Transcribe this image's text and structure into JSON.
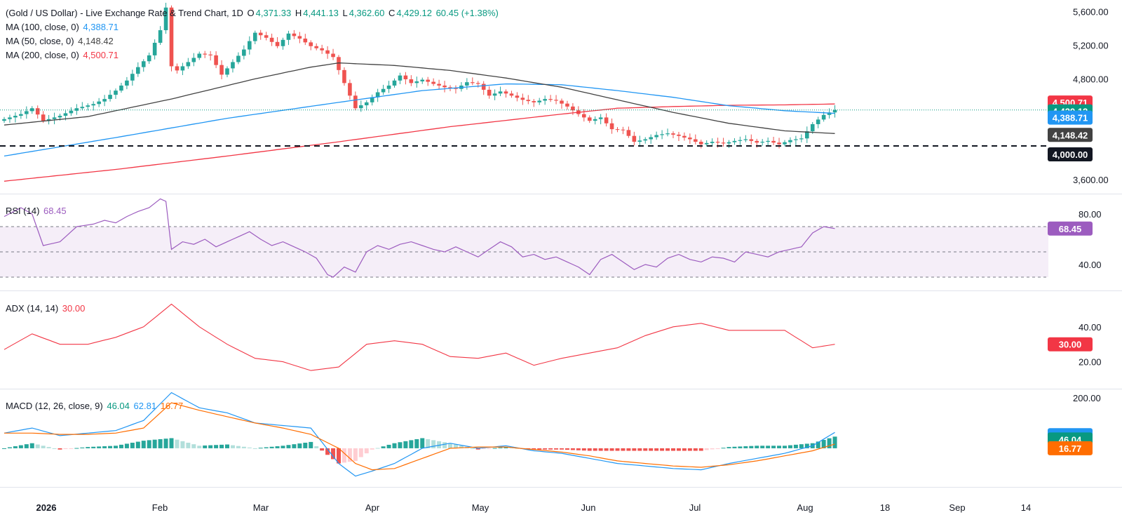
{
  "colors": {
    "up": "#26a69a",
    "down": "#ef5350",
    "ma100": "#2196f3",
    "ma50": "#424242",
    "ma200": "#f23645",
    "rsi": "#9c5cbf",
    "adx": "#f23645",
    "macd": "#2196f3",
    "signal": "#ff6d00",
    "price_tag": "#089981",
    "level_tag": "#131722"
  },
  "header": {
    "title": "(Gold / US Dollar) - Live Exchange Rate & Trend Chart, 1D",
    "o_label": "O",
    "o_value": "4,371.33",
    "h_label": "H",
    "h_value": "4,441.13",
    "l_label": "L",
    "l_value": "4,362.60",
    "c_label": "C",
    "c_value": "4,429.12",
    "change": "60.45 (+1.38%)"
  },
  "indicators": {
    "ma100": {
      "label": "MA (100, close, 0)",
      "value": "4,388.71"
    },
    "ma50": {
      "label": "MA (50, close, 0)",
      "value": "4,148.42"
    },
    "ma200": {
      "label": "MA (200, close, 0)",
      "value": "4,500.71"
    },
    "rsi": {
      "label": "RSI (14)",
      "value": "68.45"
    },
    "adx": {
      "label": "ADX (14, 14)",
      "value": "30.00"
    },
    "macd": {
      "label": "MACD (12, 26, close, 9)",
      "hist": "46.04",
      "macd": "62.81",
      "signal": "16.77"
    }
  },
  "chart_data": [
    {
      "type": "line",
      "panel": "price",
      "y_ticks": [
        "5,600.00",
        "5,200.00",
        "4,800.00",
        "3,600.00"
      ],
      "ylim": [
        3440,
        5740
      ],
      "x_labels": [
        "2026",
        "Feb",
        "Mar",
        "Apr",
        "May",
        "Jun",
        "Jul",
        "Aug",
        "18",
        "Sep",
        "14"
      ],
      "horizontal_level": 4000,
      "price_path": [
        [
          0,
          4320
        ],
        [
          3,
          4380
        ],
        [
          5,
          4450
        ],
        [
          7,
          4300
        ],
        [
          10,
          4360
        ],
        [
          13,
          4450
        ],
        [
          16,
          4500
        ],
        [
          18,
          4560
        ],
        [
          20,
          4660
        ],
        [
          22,
          4780
        ],
        [
          24,
          4940
        ],
        [
          26,
          5080
        ],
        [
          28,
          5380
        ],
        [
          29,
          5650
        ],
        [
          30,
          4950
        ],
        [
          31,
          4900
        ],
        [
          33,
          5000
        ],
        [
          35,
          5100
        ],
        [
          37,
          5080
        ],
        [
          39,
          4850
        ],
        [
          41,
          5000
        ],
        [
          43,
          5150
        ],
        [
          45,
          5350
        ],
        [
          47,
          5290
        ],
        [
          49,
          5190
        ],
        [
          51,
          5340
        ],
        [
          53,
          5280
        ],
        [
          55,
          5190
        ],
        [
          57,
          5140
        ],
        [
          59,
          5060
        ],
        [
          61,
          4750
        ],
        [
          63,
          4450
        ],
        [
          65,
          4520
        ],
        [
          67,
          4640
        ],
        [
          69,
          4720
        ],
        [
          71,
          4840
        ],
        [
          73,
          4750
        ],
        [
          75,
          4790
        ],
        [
          77,
          4740
        ],
        [
          79,
          4700
        ],
        [
          81,
          4680
        ],
        [
          83,
          4760
        ],
        [
          85,
          4740
        ],
        [
          87,
          4600
        ],
        [
          89,
          4650
        ],
        [
          91,
          4600
        ],
        [
          93,
          4550
        ],
        [
          95,
          4520
        ],
        [
          97,
          4560
        ],
        [
          99,
          4540
        ],
        [
          101,
          4470
        ],
        [
          103,
          4380
        ],
        [
          105,
          4300
        ],
        [
          107,
          4340
        ],
        [
          109,
          4200
        ],
        [
          111,
          4190
        ],
        [
          113,
          4050
        ],
        [
          115,
          4080
        ],
        [
          117,
          4130
        ],
        [
          119,
          4150
        ],
        [
          121,
          4120
        ],
        [
          123,
          4080
        ],
        [
          125,
          4020
        ],
        [
          127,
          4050
        ],
        [
          129,
          4030
        ],
        [
          131,
          4060
        ],
        [
          133,
          4080
        ],
        [
          135,
          4040
        ],
        [
          137,
          4060
        ],
        [
          139,
          4020
        ],
        [
          141,
          4070
        ],
        [
          143,
          4090
        ],
        [
          145,
          4260
        ],
        [
          147,
          4370
        ],
        [
          149,
          4429.12
        ]
      ],
      "ma100_path": [
        [
          0,
          3880
        ],
        [
          20,
          4100
        ],
        [
          40,
          4330
        ],
        [
          60,
          4520
        ],
        [
          75,
          4660
        ],
        [
          90,
          4740
        ],
        [
          100,
          4730
        ],
        [
          110,
          4660
        ],
        [
          120,
          4580
        ],
        [
          130,
          4480
        ],
        [
          140,
          4420
        ],
        [
          149,
          4388.71
        ]
      ],
      "ma200_path": [
        [
          0,
          3580
        ],
        [
          20,
          3720
        ],
        [
          40,
          3880
        ],
        [
          60,
          4050
        ],
        [
          80,
          4230
        ],
        [
          100,
          4380
        ],
        [
          110,
          4450
        ],
        [
          120,
          4470
        ],
        [
          130,
          4485
        ],
        [
          140,
          4490
        ],
        [
          149,
          4500.71
        ]
      ],
      "ma50_path": [
        [
          0,
          4250
        ],
        [
          15,
          4350
        ],
        [
          30,
          4560
        ],
        [
          45,
          4800
        ],
        [
          55,
          4940
        ],
        [
          60,
          4990
        ],
        [
          70,
          4960
        ],
        [
          80,
          4900
        ],
        [
          90,
          4810
        ],
        [
          100,
          4700
        ],
        [
          110,
          4550
        ],
        [
          120,
          4400
        ],
        [
          130,
          4270
        ],
        [
          140,
          4180
        ],
        [
          149,
          4148.42
        ]
      ],
      "last_values": {
        "close": 4429.12,
        "ma100": 4388.71,
        "ma50": 4148.42,
        "ma200": 4500.71,
        "level": 4000
      }
    },
    {
      "type": "line",
      "panel": "rsi",
      "y_ticks": [
        "80.00",
        "40.00"
      ],
      "ylim": [
        20,
        95
      ],
      "bands": [
        70,
        50,
        30
      ],
      "values": [
        [
          0,
          78
        ],
        [
          3,
          85
        ],
        [
          5,
          80
        ],
        [
          7,
          55
        ],
        [
          10,
          58
        ],
        [
          13,
          70
        ],
        [
          16,
          72
        ],
        [
          18,
          75
        ],
        [
          20,
          73
        ],
        [
          22,
          78
        ],
        [
          24,
          82
        ],
        [
          26,
          85
        ],
        [
          28,
          92
        ],
        [
          29,
          90
        ],
        [
          30,
          52
        ],
        [
          32,
          58
        ],
        [
          34,
          56
        ],
        [
          36,
          60
        ],
        [
          38,
          54
        ],
        [
          40,
          58
        ],
        [
          42,
          62
        ],
        [
          44,
          66
        ],
        [
          46,
          60
        ],
        [
          48,
          55
        ],
        [
          50,
          58
        ],
        [
          52,
          54
        ],
        [
          54,
          50
        ],
        [
          56,
          45
        ],
        [
          58,
          32
        ],
        [
          59,
          30
        ],
        [
          61,
          38
        ],
        [
          63,
          34
        ],
        [
          65,
          50
        ],
        [
          67,
          55
        ],
        [
          69,
          52
        ],
        [
          71,
          56
        ],
        [
          73,
          58
        ],
        [
          75,
          55
        ],
        [
          77,
          52
        ],
        [
          79,
          50
        ],
        [
          81,
          54
        ],
        [
          83,
          50
        ],
        [
          85,
          46
        ],
        [
          87,
          52
        ],
        [
          89,
          58
        ],
        [
          91,
          54
        ],
        [
          93,
          46
        ],
        [
          95,
          48
        ],
        [
          97,
          44
        ],
        [
          99,
          46
        ],
        [
          101,
          42
        ],
        [
          103,
          38
        ],
        [
          105,
          32
        ],
        [
          107,
          44
        ],
        [
          109,
          48
        ],
        [
          111,
          42
        ],
        [
          113,
          36
        ],
        [
          115,
          40
        ],
        [
          117,
          38
        ],
        [
          119,
          45
        ],
        [
          121,
          48
        ],
        [
          123,
          44
        ],
        [
          125,
          42
        ],
        [
          127,
          46
        ],
        [
          129,
          45
        ],
        [
          131,
          42
        ],
        [
          133,
          50
        ],
        [
          135,
          48
        ],
        [
          137,
          46
        ],
        [
          139,
          50
        ],
        [
          141,
          52
        ],
        [
          143,
          54
        ],
        [
          145,
          65
        ],
        [
          147,
          70
        ],
        [
          149,
          68.45
        ]
      ]
    },
    {
      "type": "line",
      "panel": "adx",
      "y_ticks": [
        "40.00",
        "20.00"
      ],
      "ylim": [
        5,
        60
      ],
      "values": [
        [
          0,
          27
        ],
        [
          5,
          36
        ],
        [
          10,
          30
        ],
        [
          15,
          30
        ],
        [
          20,
          34
        ],
        [
          25,
          40
        ],
        [
          30,
          53
        ],
        [
          35,
          40
        ],
        [
          40,
          30
        ],
        [
          45,
          22
        ],
        [
          50,
          20
        ],
        [
          55,
          15
        ],
        [
          60,
          17
        ],
        [
          65,
          30
        ],
        [
          70,
          32
        ],
        [
          75,
          30
        ],
        [
          80,
          23
        ],
        [
          85,
          22
        ],
        [
          90,
          25
        ],
        [
          95,
          18
        ],
        [
          100,
          22
        ],
        [
          105,
          25
        ],
        [
          110,
          28
        ],
        [
          115,
          35
        ],
        [
          120,
          40
        ],
        [
          125,
          42
        ],
        [
          130,
          38
        ],
        [
          135,
          38
        ],
        [
          140,
          38
        ],
        [
          145,
          28
        ],
        [
          149,
          30
        ]
      ]
    },
    {
      "type": "bar",
      "panel": "macd",
      "y_ticks": [
        "200.00"
      ],
      "ylim": [
        -150,
        230
      ],
      "macd_line": [
        [
          0,
          60
        ],
        [
          5,
          80
        ],
        [
          10,
          50
        ],
        [
          15,
          60
        ],
        [
          20,
          70
        ],
        [
          25,
          110
        ],
        [
          30,
          220
        ],
        [
          35,
          160
        ],
        [
          40,
          140
        ],
        [
          45,
          100
        ],
        [
          50,
          90
        ],
        [
          55,
          80
        ],
        [
          60,
          -60
        ],
        [
          63,
          -110
        ],
        [
          66,
          -90
        ],
        [
          70,
          -60
        ],
        [
          75,
          0
        ],
        [
          80,
          20
        ],
        [
          85,
          0
        ],
        [
          90,
          10
        ],
        [
          95,
          -10
        ],
        [
          100,
          -20
        ],
        [
          105,
          -40
        ],
        [
          110,
          -60
        ],
        [
          115,
          -70
        ],
        [
          120,
          -80
        ],
        [
          125,
          -85
        ],
        [
          130,
          -60
        ],
        [
          135,
          -40
        ],
        [
          140,
          -20
        ],
        [
          145,
          10
        ],
        [
          149,
          62.81
        ]
      ],
      "signal_line": [
        [
          0,
          60
        ],
        [
          5,
          60
        ],
        [
          10,
          55
        ],
        [
          15,
          55
        ],
        [
          20,
          60
        ],
        [
          25,
          80
        ],
        [
          30,
          180
        ],
        [
          35,
          150
        ],
        [
          40,
          125
        ],
        [
          45,
          100
        ],
        [
          50,
          80
        ],
        [
          55,
          55
        ],
        [
          60,
          0
        ],
        [
          63,
          -60
        ],
        [
          66,
          -85
        ],
        [
          70,
          -80
        ],
        [
          75,
          -40
        ],
        [
          80,
          0
        ],
        [
          85,
          5
        ],
        [
          90,
          5
        ],
        [
          95,
          -5
        ],
        [
          100,
          -15
        ],
        [
          105,
          -30
        ],
        [
          110,
          -50
        ],
        [
          115,
          -60
        ],
        [
          120,
          -70
        ],
        [
          125,
          -75
        ],
        [
          130,
          -65
        ],
        [
          135,
          -50
        ],
        [
          140,
          -30
        ],
        [
          145,
          -10
        ],
        [
          149,
          16.77
        ]
      ],
      "last_values": {
        "hist": 46.04,
        "macd": 62.81,
        "signal": 16.77
      }
    }
  ]
}
